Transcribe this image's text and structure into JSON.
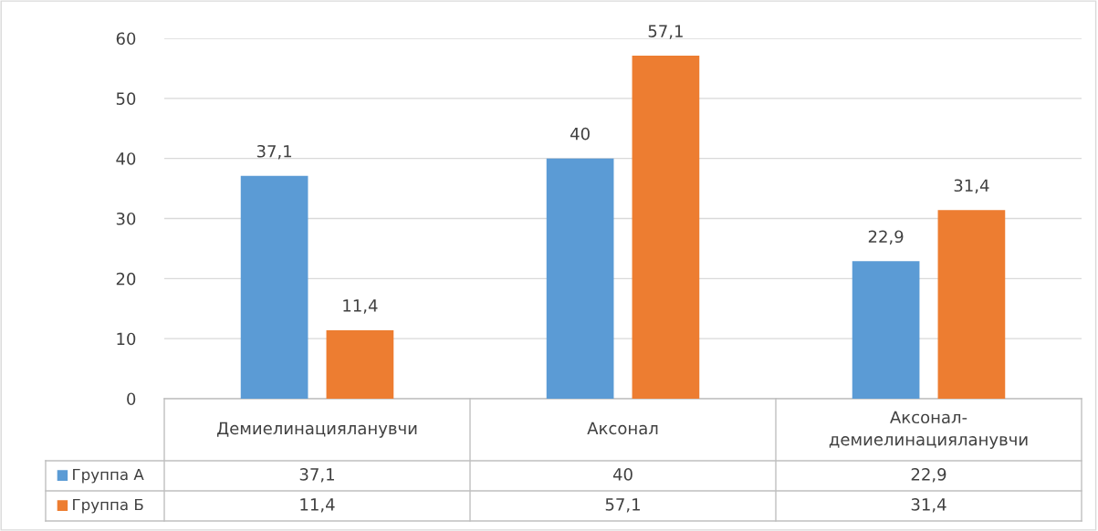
{
  "chart_data": {
    "type": "bar",
    "categories": [
      "Демиелинацияланувчи",
      "Аксонал",
      "Аксонал-демиелинацияланувчи"
    ],
    "series": [
      {
        "name": "Группа А",
        "color": "#5b9bd5",
        "values": [
          37.1,
          40,
          22.9
        ],
        "value_labels": [
          "37,1",
          "40",
          "22,9"
        ]
      },
      {
        "name": "Группа Б",
        "color": "#ed7d31",
        "values": [
          11.4,
          57.1,
          31.4
        ],
        "value_labels": [
          "11,4",
          "57,1",
          "31,4"
        ]
      }
    ],
    "ylim": [
      0,
      60
    ],
    "yticks": [
      0,
      10,
      20,
      30,
      40,
      50,
      60
    ],
    "grid": "y",
    "legend": "bottom"
  }
}
